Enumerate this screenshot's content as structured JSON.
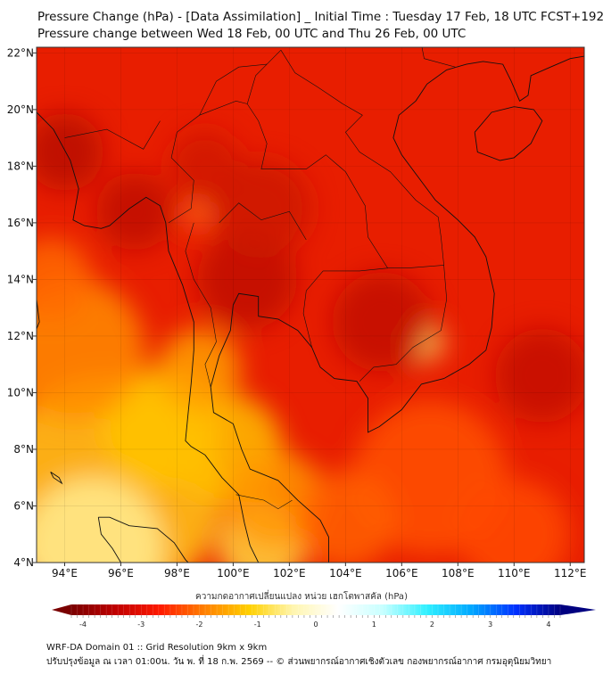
{
  "header": {
    "title": "Pressure Change (hPa) - [Data Assimilation] _ Initial Time : Tuesday 17 Feb, 18 UTC FCST+192",
    "subtitle": "Pressure change between Wed 18 Feb, 00 UTC and Thu 26 Feb, 00 UTC"
  },
  "map": {
    "lon_range": [
      93.0,
      112.5
    ],
    "lat_range": [
      4.0,
      22.2
    ],
    "x_ticks": [
      "94°E",
      "96°E",
      "98°E",
      "100°E",
      "102°E",
      "104°E",
      "106°E",
      "108°E",
      "110°E",
      "112°E"
    ],
    "x_tick_values": [
      94,
      96,
      98,
      100,
      102,
      104,
      106,
      108,
      110,
      112
    ],
    "y_ticks": [
      "4°N",
      "6°N",
      "8°N",
      "10°N",
      "12°N",
      "14°N",
      "16°N",
      "18°N",
      "20°N",
      "22°N"
    ],
    "y_tick_values": [
      4,
      6,
      8,
      10,
      12,
      14,
      16,
      18,
      20,
      22
    ],
    "base_color": "#e81e00"
  },
  "colorbar": {
    "label": "ความกดอากาศเปลี่ยนแปลง หน่วย เฮกโตพาสคัล (hPa)",
    "ticks": [
      "-4",
      "-3",
      "-2",
      "-1",
      "0",
      "1",
      "2",
      "3",
      "4"
    ],
    "tick_values": [
      -4,
      -3,
      -2,
      -1,
      0,
      1,
      2,
      3,
      4
    ],
    "range": [
      -4.2,
      4.2
    ],
    "colors": [
      "#7a0000",
      "#c00000",
      "#ff1a00",
      "#ff8000",
      "#ffd000",
      "#fff6b0",
      "#ffffff",
      "#c8ffff",
      "#30f0ff",
      "#00a8ff",
      "#0030ff",
      "#000080"
    ]
  },
  "footer": {
    "line1": "WRF-DA Domain 01 :: Grid Resolution 9km x 9km",
    "line2": "ปรับปรุงข้อมูล ณ เวลา 01:00น. วัน พ. ที่ 18 ก.พ. 2569 -- © ส่วนพยากรณ์อากาศเชิงตัวเลข กองพยากรณ์อากาศ กรมอุตุนิยมวิทยา"
  }
}
